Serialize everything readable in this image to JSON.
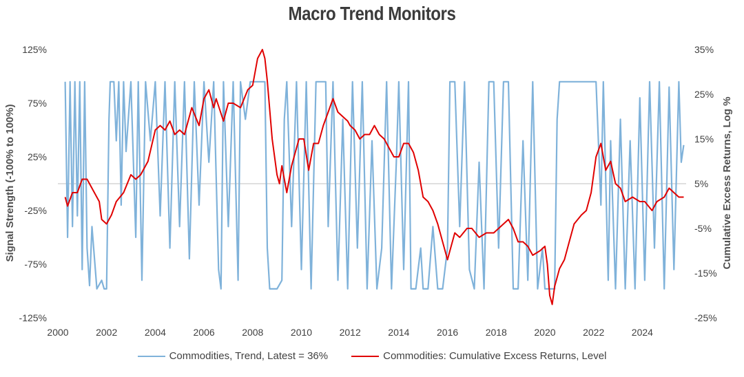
{
  "page": {
    "title": "Macro Trend Monitors"
  },
  "chart_data": {
    "type": "line",
    "title": "Macro Trend Monitors",
    "xlabel": "",
    "ylabel_left": "Signal Strength (-100% to 100%)",
    "ylabel_right": "Cumulative Excess Returns, Log %",
    "x_ticks": [
      "2000",
      "2002",
      "2004",
      "2006",
      "2008",
      "2010",
      "2012",
      "2014",
      "2016",
      "2018",
      "2020",
      "2022",
      "2024"
    ],
    "y_left_ticks": [
      "125%",
      "75%",
      "25%",
      "-25%",
      "-75%",
      "-125%"
    ],
    "y_right_ticks": [
      "35%",
      "25%",
      "15%",
      "5%",
      "-5%",
      "-15%",
      "-25%"
    ],
    "xlim": [
      2000.0,
      2025.8
    ],
    "ylim_left": [
      -125,
      125
    ],
    "ylim_right": [
      -25,
      35
    ],
    "grid": false,
    "zero_line": true,
    "legend_position": "bottom",
    "series": [
      {
        "name": "Commodities, Trend, Latest = 36%",
        "axis": "left",
        "color": "#7fb2da",
        "points": [
          [
            2000.3,
            95
          ],
          [
            2000.4,
            -50
          ],
          [
            2000.5,
            95
          ],
          [
            2000.6,
            -40
          ],
          [
            2000.7,
            95
          ],
          [
            2000.8,
            -30
          ],
          [
            2000.9,
            95
          ],
          [
            2001.0,
            -80
          ],
          [
            2001.1,
            95
          ],
          [
            2001.2,
            -60
          ],
          [
            2001.3,
            -95
          ],
          [
            2001.4,
            -40
          ],
          [
            2001.6,
            -98
          ],
          [
            2001.8,
            -90
          ],
          [
            2001.9,
            -98
          ],
          [
            2002.0,
            -98
          ],
          [
            2002.1,
            60
          ],
          [
            2002.15,
            95
          ],
          [
            2002.3,
            95
          ],
          [
            2002.4,
            40
          ],
          [
            2002.5,
            95
          ],
          [
            2002.6,
            -20
          ],
          [
            2002.7,
            95
          ],
          [
            2002.8,
            30
          ],
          [
            2003.0,
            95
          ],
          [
            2003.2,
            -50
          ],
          [
            2003.3,
            95
          ],
          [
            2003.45,
            -90
          ],
          [
            2003.6,
            95
          ],
          [
            2003.8,
            40
          ],
          [
            2004.0,
            95
          ],
          [
            2004.2,
            -30
          ],
          [
            2004.4,
            95
          ],
          [
            2004.6,
            -60
          ],
          [
            2004.8,
            95
          ],
          [
            2005.0,
            -40
          ],
          [
            2005.2,
            95
          ],
          [
            2005.4,
            -70
          ],
          [
            2005.6,
            95
          ],
          [
            2005.8,
            -20
          ],
          [
            2006.0,
            95
          ],
          [
            2006.2,
            20
          ],
          [
            2006.4,
            95
          ],
          [
            2006.6,
            -80
          ],
          [
            2006.7,
            -98
          ],
          [
            2006.8,
            95
          ],
          [
            2007.0,
            -40
          ],
          [
            2007.2,
            95
          ],
          [
            2007.4,
            -90
          ],
          [
            2007.5,
            95
          ],
          [
            2007.7,
            60
          ],
          [
            2007.9,
            95
          ],
          [
            2008.0,
            95
          ],
          [
            2008.3,
            95
          ],
          [
            2008.5,
            95
          ],
          [
            2008.6,
            -60
          ],
          [
            2008.7,
            -98
          ],
          [
            2009.0,
            -98
          ],
          [
            2009.2,
            -90
          ],
          [
            2009.3,
            60
          ],
          [
            2009.4,
            95
          ],
          [
            2009.6,
            -40
          ],
          [
            2009.8,
            95
          ],
          [
            2010.0,
            -80
          ],
          [
            2010.2,
            95
          ],
          [
            2010.4,
            -98
          ],
          [
            2010.6,
            95
          ],
          [
            2010.8,
            95
          ],
          [
            2011.0,
            95
          ],
          [
            2011.1,
            -40
          ],
          [
            2011.3,
            95
          ],
          [
            2011.5,
            -90
          ],
          [
            2011.7,
            60
          ],
          [
            2011.9,
            -98
          ],
          [
            2012.1,
            95
          ],
          [
            2012.3,
            -60
          ],
          [
            2012.5,
            95
          ],
          [
            2012.7,
            -98
          ],
          [
            2012.9,
            40
          ],
          [
            2013.1,
            -98
          ],
          [
            2013.3,
            -60
          ],
          [
            2013.5,
            95
          ],
          [
            2013.7,
            -98
          ],
          [
            2013.9,
            20
          ],
          [
            2014.0,
            95
          ],
          [
            2014.2,
            -80
          ],
          [
            2014.4,
            95
          ],
          [
            2014.5,
            -98
          ],
          [
            2014.7,
            -98
          ],
          [
            2014.9,
            -60
          ],
          [
            2015.0,
            -98
          ],
          [
            2015.2,
            -98
          ],
          [
            2015.4,
            -40
          ],
          [
            2015.6,
            -98
          ],
          [
            2015.8,
            -98
          ],
          [
            2016.0,
            -60
          ],
          [
            2016.1,
            95
          ],
          [
            2016.3,
            95
          ],
          [
            2016.5,
            -40
          ],
          [
            2016.7,
            95
          ],
          [
            2016.9,
            -80
          ],
          [
            2017.1,
            -98
          ],
          [
            2017.3,
            20
          ],
          [
            2017.5,
            -98
          ],
          [
            2017.7,
            95
          ],
          [
            2017.9,
            95
          ],
          [
            2018.1,
            -60
          ],
          [
            2018.3,
            95
          ],
          [
            2018.5,
            95
          ],
          [
            2018.7,
            -98
          ],
          [
            2018.9,
            -98
          ],
          [
            2019.1,
            40
          ],
          [
            2019.3,
            -90
          ],
          [
            2019.5,
            95
          ],
          [
            2019.7,
            -98
          ],
          [
            2019.9,
            -60
          ],
          [
            2020.0,
            -98
          ],
          [
            2020.2,
            -98
          ],
          [
            2020.4,
            -98
          ],
          [
            2020.5,
            60
          ],
          [
            2020.6,
            95
          ],
          [
            2020.8,
            95
          ],
          [
            2021.0,
            95
          ],
          [
            2021.3,
            95
          ],
          [
            2021.6,
            95
          ],
          [
            2021.9,
            95
          ],
          [
            2022.1,
            95
          ],
          [
            2022.3,
            -20
          ],
          [
            2022.4,
            95
          ],
          [
            2022.6,
            -90
          ],
          [
            2022.7,
            40
          ],
          [
            2022.9,
            -98
          ],
          [
            2023.1,
            60
          ],
          [
            2023.3,
            -98
          ],
          [
            2023.5,
            40
          ],
          [
            2023.7,
            -98
          ],
          [
            2023.9,
            80
          ],
          [
            2024.1,
            -90
          ],
          [
            2024.3,
            95
          ],
          [
            2024.5,
            -60
          ],
          [
            2024.7,
            95
          ],
          [
            2024.9,
            -98
          ],
          [
            2025.1,
            90
          ],
          [
            2025.3,
            -80
          ],
          [
            2025.5,
            95
          ],
          [
            2025.6,
            20
          ],
          [
            2025.7,
            36
          ]
        ]
      },
      {
        "name": "Commodities: Cumulative Excess Returns, Level",
        "axis": "right",
        "color": "#e00000",
        "points": [
          [
            2000.3,
            2
          ],
          [
            2000.4,
            0
          ],
          [
            2000.6,
            3
          ],
          [
            2000.8,
            3
          ],
          [
            2001.0,
            6
          ],
          [
            2001.2,
            6
          ],
          [
            2001.5,
            3
          ],
          [
            2001.7,
            1
          ],
          [
            2001.8,
            -3
          ],
          [
            2002.0,
            -4
          ],
          [
            2002.2,
            -2
          ],
          [
            2002.4,
            1
          ],
          [
            2002.7,
            3
          ],
          [
            2003.0,
            7
          ],
          [
            2003.2,
            6
          ],
          [
            2003.4,
            7
          ],
          [
            2003.7,
            10
          ],
          [
            2004.0,
            17
          ],
          [
            2004.2,
            18
          ],
          [
            2004.4,
            17
          ],
          [
            2004.6,
            19
          ],
          [
            2004.8,
            16
          ],
          [
            2005.0,
            17
          ],
          [
            2005.2,
            16
          ],
          [
            2005.5,
            22
          ],
          [
            2005.8,
            18
          ],
          [
            2006.0,
            24
          ],
          [
            2006.2,
            26
          ],
          [
            2006.4,
            22
          ],
          [
            2006.5,
            24
          ],
          [
            2006.8,
            19
          ],
          [
            2007.0,
            23
          ],
          [
            2007.2,
            23
          ],
          [
            2007.5,
            22
          ],
          [
            2007.8,
            26
          ],
          [
            2008.0,
            27
          ],
          [
            2008.2,
            33
          ],
          [
            2008.4,
            35
          ],
          [
            2008.5,
            33
          ],
          [
            2008.6,
            28
          ],
          [
            2008.8,
            15
          ],
          [
            2009.0,
            7
          ],
          [
            2009.1,
            5
          ],
          [
            2009.2,
            9
          ],
          [
            2009.4,
            3
          ],
          [
            2009.6,
            9
          ],
          [
            2009.9,
            15
          ],
          [
            2010.1,
            15
          ],
          [
            2010.3,
            8
          ],
          [
            2010.5,
            14
          ],
          [
            2010.7,
            14
          ],
          [
            2010.9,
            18
          ],
          [
            2011.1,
            21
          ],
          [
            2011.3,
            24
          ],
          [
            2011.5,
            21
          ],
          [
            2011.7,
            20
          ],
          [
            2011.9,
            19
          ],
          [
            2012.0,
            18
          ],
          [
            2012.2,
            17
          ],
          [
            2012.4,
            15
          ],
          [
            2012.6,
            16
          ],
          [
            2012.8,
            16
          ],
          [
            2013.0,
            18
          ],
          [
            2013.2,
            16
          ],
          [
            2013.4,
            15
          ],
          [
            2013.6,
            13
          ],
          [
            2013.8,
            11
          ],
          [
            2014.0,
            11
          ],
          [
            2014.2,
            14
          ],
          [
            2014.4,
            14
          ],
          [
            2014.6,
            12
          ],
          [
            2014.8,
            8
          ],
          [
            2015.0,
            2
          ],
          [
            2015.2,
            1
          ],
          [
            2015.4,
            -1
          ],
          [
            2015.6,
            -4
          ],
          [
            2015.8,
            -8
          ],
          [
            2016.0,
            -12
          ],
          [
            2016.1,
            -10
          ],
          [
            2016.3,
            -6
          ],
          [
            2016.5,
            -7
          ],
          [
            2016.8,
            -5
          ],
          [
            2017.0,
            -5
          ],
          [
            2017.3,
            -7
          ],
          [
            2017.6,
            -6
          ],
          [
            2017.9,
            -6
          ],
          [
            2018.1,
            -5
          ],
          [
            2018.3,
            -4
          ],
          [
            2018.5,
            -3
          ],
          [
            2018.7,
            -5
          ],
          [
            2018.9,
            -8
          ],
          [
            2019.1,
            -8
          ],
          [
            2019.3,
            -9
          ],
          [
            2019.5,
            -11
          ],
          [
            2019.8,
            -10
          ],
          [
            2020.0,
            -9
          ],
          [
            2020.1,
            -13
          ],
          [
            2020.2,
            -20
          ],
          [
            2020.3,
            -22
          ],
          [
            2020.4,
            -18
          ],
          [
            2020.6,
            -14
          ],
          [
            2020.8,
            -12
          ],
          [
            2021.0,
            -8
          ],
          [
            2021.2,
            -4
          ],
          [
            2021.5,
            -2
          ],
          [
            2021.7,
            -1
          ],
          [
            2021.9,
            3
          ],
          [
            2022.1,
            11
          ],
          [
            2022.3,
            14
          ],
          [
            2022.5,
            8
          ],
          [
            2022.7,
            10
          ],
          [
            2022.9,
            5
          ],
          [
            2023.1,
            4
          ],
          [
            2023.3,
            1
          ],
          [
            2023.6,
            2
          ],
          [
            2023.9,
            1
          ],
          [
            2024.1,
            1
          ],
          [
            2024.4,
            -1
          ],
          [
            2024.6,
            1
          ],
          [
            2024.9,
            2
          ],
          [
            2025.1,
            4
          ],
          [
            2025.3,
            3
          ],
          [
            2025.5,
            2
          ],
          [
            2025.7,
            2
          ]
        ]
      }
    ]
  }
}
